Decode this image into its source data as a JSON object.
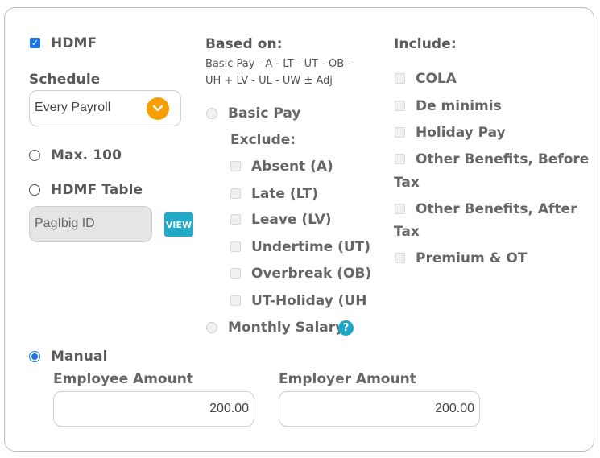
{
  "hdmf": {
    "label": "HDMF",
    "checked": true
  },
  "schedule": {
    "label": "Schedule",
    "selected": "Every Payroll"
  },
  "options": {
    "max": {
      "label": "Max. 100"
    },
    "table": {
      "label": "HDMF Table"
    },
    "manual": {
      "label": "Manual"
    }
  },
  "pagibig": {
    "value": "PagIbig ID",
    "view_label": "VIEW"
  },
  "based_on": {
    "label": "Based on:",
    "formula_line1": "Basic Pay - A - LT - UT - OB -",
    "formula_line2": "UH + LV - UL - UW ± Adj",
    "basic_pay": "Basic Pay",
    "exclude_label": "Exclude:",
    "exclude": [
      "Absent (A)",
      "Late (LT)",
      "Leave (LV)",
      "Undertime (UT)",
      "Overbreak (OB)",
      "UT-Holiday (UH"
    ],
    "monthly_salary": "Monthly Salary",
    "help": "?"
  },
  "include": {
    "label": "Include:",
    "items": {
      "cola": "COLA",
      "deminimis": "De minimis",
      "holiday": "Holiday Pay",
      "before_1": "Other Benefits, Before",
      "before_2": "Tax",
      "after_1": "Other Benefits, After",
      "after_2": "Tax",
      "premium": "Premium & OT"
    }
  },
  "employee": {
    "label": "Employee Amount",
    "value": "200.00"
  },
  "employer": {
    "label": "Employer Amount",
    "value": "200.00"
  },
  "colors": {
    "accent": "#1a73e8",
    "chevron": "#f5a000",
    "view": "#21a9c6"
  }
}
